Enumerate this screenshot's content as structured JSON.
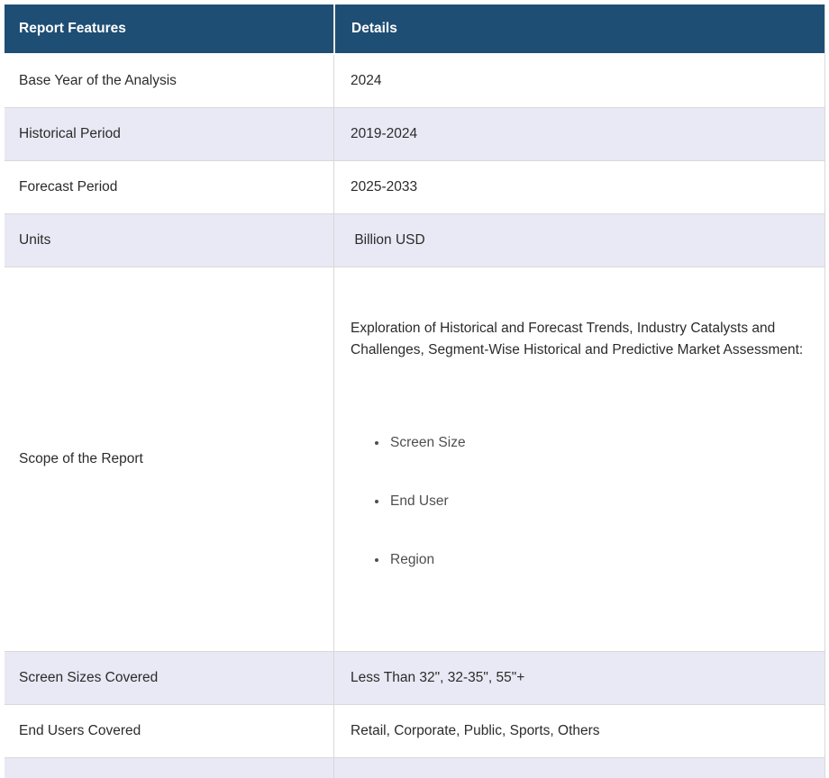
{
  "table": {
    "header": {
      "feature": "Report Features",
      "details": "Details"
    },
    "rows": [
      {
        "feature": "Base Year of the Analysis",
        "details": "2024"
      },
      {
        "feature": "Historical Period",
        "details": "2019-2024"
      },
      {
        "feature": "Forecast Period",
        "details": "2025-2033"
      },
      {
        "feature": "Units",
        "details": " Billion USD"
      },
      {
        "feature": "Scope of the Report",
        "details_intro": "Exploration of Historical and Forecast Trends, Industry Catalysts and Challenges, Segment-Wise Historical and Predictive Market Assessment:",
        "details_list": [
          "Screen Size",
          "End User",
          "Region"
        ]
      },
      {
        "feature": "Screen Sizes Covered",
        "details": "Less Than 32\", 32-35\", 55\"+"
      },
      {
        "feature": "End Users Covered",
        "details": "Retail, Corporate, Public, Sports, Others"
      }
    ],
    "colors": {
      "header_bg": "#1F4E74",
      "header_text": "#FFFFFF",
      "stripe_bg": "#E8E9F4",
      "border": "#D9D9D9",
      "body_text": "#2B2B2B",
      "list_text": "#4F4F4F"
    }
  }
}
